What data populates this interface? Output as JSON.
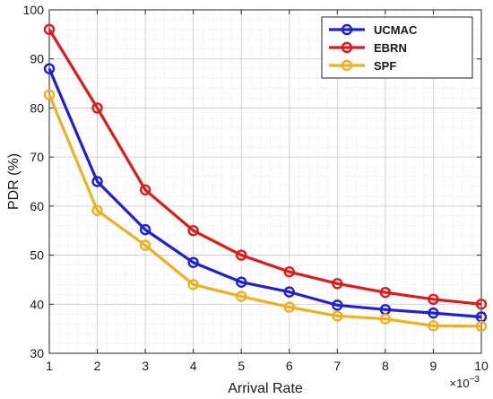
{
  "chart_data": {
    "type": "line",
    "xlabel": "Arrival Rate",
    "ylabel": "PDR (%)",
    "x_multiplier_label": "×10",
    "x_multiplier_exponent": "−3",
    "x": [
      1,
      2,
      3,
      4,
      5,
      6,
      7,
      8,
      9,
      10
    ],
    "xlim": [
      1,
      10
    ],
    "ylim": [
      30,
      100
    ],
    "xticks": [
      "1",
      "2",
      "3",
      "4",
      "5",
      "6",
      "7",
      "8",
      "9",
      "10"
    ],
    "yticks": [
      "30",
      "40",
      "50",
      "60",
      "70",
      "80",
      "90",
      "100"
    ],
    "grid": true,
    "minor_grid": true,
    "legend_position": "top-right",
    "series": [
      {
        "name": "UCMAC",
        "color": "#1f1fd6",
        "marker": "circle",
        "values": [
          88.0,
          65.0,
          55.2,
          48.5,
          44.5,
          42.5,
          39.8,
          38.9,
          38.2,
          37.4
        ]
      },
      {
        "name": "EBRN",
        "color": "#e01a1a",
        "marker": "circle",
        "values": [
          96.0,
          80.0,
          63.3,
          55.0,
          50.0,
          46.6,
          44.2,
          42.4,
          41.0,
          40.0
        ]
      },
      {
        "name": "SPF",
        "color": "#edb120",
        "marker": "circle",
        "values": [
          82.7,
          59.1,
          52.0,
          44.0,
          41.6,
          39.4,
          37.6,
          37.0,
          35.6,
          35.5
        ]
      }
    ]
  }
}
